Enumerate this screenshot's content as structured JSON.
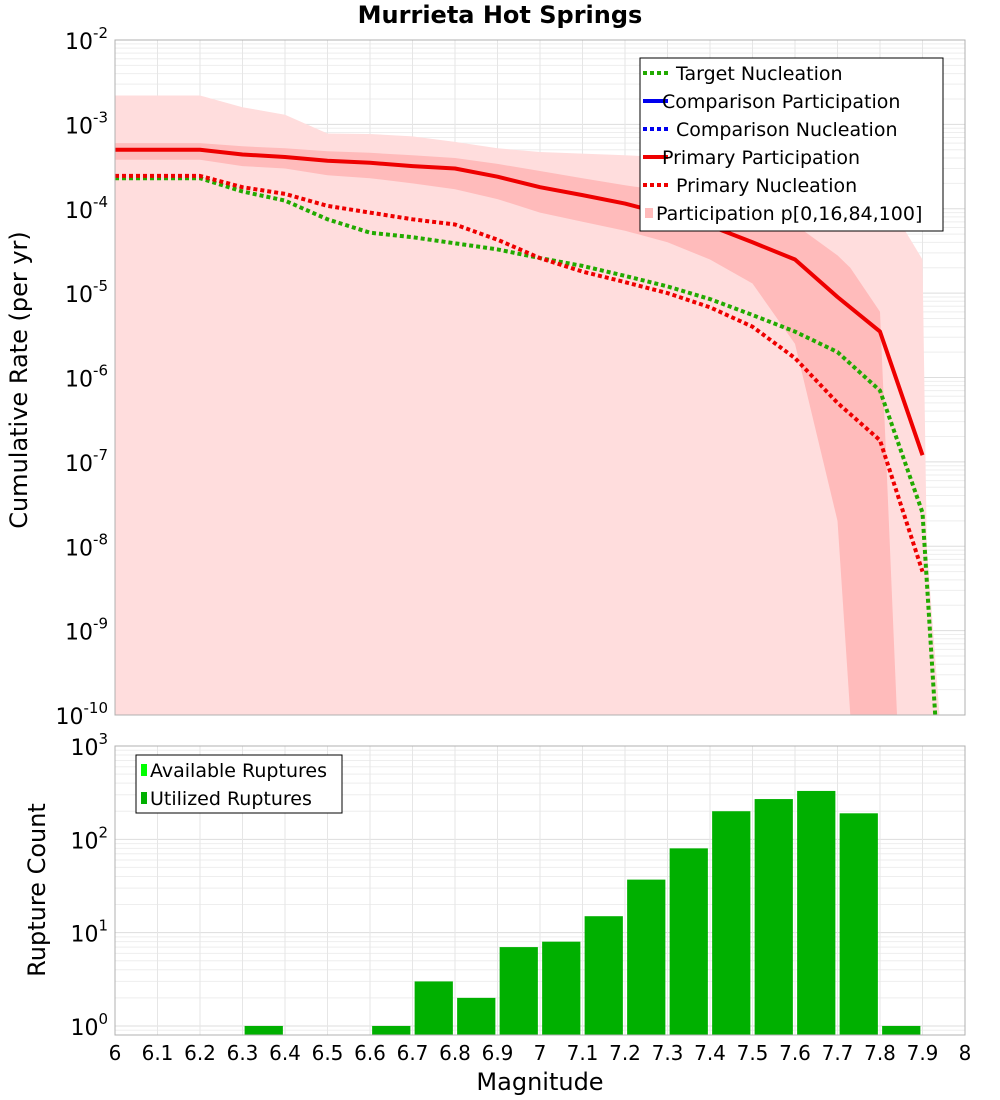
{
  "chart_data": [
    {
      "type": "line",
      "title": "Murrieta Hot Springs",
      "ylabel": "Cumulative Rate (per yr)",
      "yscale": "log",
      "ylim": [
        1e-10,
        0.01
      ],
      "xlim": [
        6,
        8
      ],
      "grid": true,
      "legend_position": "top-right",
      "ytick_labels": [
        {
          "base": "10",
          "exp": "-10"
        },
        {
          "base": "10",
          "exp": "-9"
        },
        {
          "base": "10",
          "exp": "-8"
        },
        {
          "base": "10",
          "exp": "-7"
        },
        {
          "base": "10",
          "exp": "-6"
        },
        {
          "base": "10",
          "exp": "-5"
        },
        {
          "base": "10",
          "exp": "-4"
        },
        {
          "base": "10",
          "exp": "-3"
        },
        {
          "base": "10",
          "exp": "-2"
        }
      ],
      "legend": [
        "Target Nucleation",
        "Comparison Participation",
        "Comparison Nucleation",
        "Primary Participation",
        "Primary Nucleation",
        "Participation p[0,16,84,100]"
      ],
      "series": [
        {
          "name": "Target Nucleation",
          "style": "dotted",
          "color": "#22aa00",
          "x": [
            6.0,
            6.2,
            6.3,
            6.4,
            6.5,
            6.6,
            6.7,
            6.8,
            6.9,
            7.0,
            7.1,
            7.2,
            7.3,
            7.4,
            7.5,
            7.6,
            7.7,
            7.8,
            7.9,
            7.93
          ],
          "y": [
            0.00023,
            0.00023,
            0.00016,
            0.000125,
            7.5e-05,
            5.2e-05,
            4.6e-05,
            3.9e-05,
            3.3e-05,
            2.6e-05,
            2.1e-05,
            1.6e-05,
            1.2e-05,
            8.5e-06,
            5.5e-06,
            3.5e-06,
            2e-06,
            7e-07,
            2.5e-08,
            1e-10
          ]
        },
        {
          "name": "Primary Participation",
          "style": "solid",
          "color": "#ee0000",
          "x": [
            6.0,
            6.2,
            6.3,
            6.4,
            6.5,
            6.6,
            6.7,
            6.8,
            6.9,
            7.0,
            7.1,
            7.2,
            7.3,
            7.4,
            7.5,
            7.6,
            7.7,
            7.8,
            7.9
          ],
          "y": [
            0.0005,
            0.0005,
            0.00044,
            0.00041,
            0.00037,
            0.00035,
            0.00032,
            0.0003,
            0.00024,
            0.00018,
            0.000145,
            0.000115,
            8.5e-05,
            6.3e-05,
            4e-05,
            2.5e-05,
            9e-06,
            3.5e-06,
            1.2e-07
          ]
        },
        {
          "name": "Primary Nucleation",
          "style": "dotted",
          "color": "#ee0000",
          "x": [
            6.0,
            6.2,
            6.3,
            6.4,
            6.5,
            6.6,
            6.7,
            6.8,
            6.9,
            7.0,
            7.1,
            7.2,
            7.3,
            7.4,
            7.5,
            7.6,
            7.7,
            7.8,
            7.9
          ],
          "y": [
            0.000245,
            0.000245,
            0.00018,
            0.00015,
            0.000108,
            9e-05,
            7.5e-05,
            6.5e-05,
            4.3e-05,
            2.6e-05,
            1.8e-05,
            1.35e-05,
            1e-05,
            6.8e-06,
            4e-06,
            1.7e-06,
            5e-07,
            1.8e-07,
            5e-09
          ]
        }
      ],
      "bands": [
        {
          "name": "Participation p[0,16,84,100] outer",
          "color": "#ffdddd",
          "x": [
            6.0,
            6.2,
            6.3,
            6.4,
            6.5,
            6.6,
            6.7,
            6.8,
            6.9,
            7.0,
            7.1,
            7.2,
            7.3,
            7.4,
            7.5,
            7.6,
            7.7,
            7.8,
            7.9,
            7.91,
            7.94
          ],
          "lower": [
            1e-10,
            1e-10,
            1e-10,
            1e-10,
            1e-10,
            1e-10,
            1e-10,
            1e-10,
            1e-10,
            1e-10,
            1e-10,
            1e-10,
            1e-10,
            1e-10,
            1e-10,
            1e-10,
            1e-10,
            1e-10,
            1e-10,
            1e-10,
            1e-10
          ],
          "upper": [
            0.0022,
            0.0022,
            0.0016,
            0.0013,
            0.00078,
            0.00077,
            0.00072,
            0.00062,
            0.00052,
            0.00047,
            0.00045,
            0.00043,
            0.00041,
            0.00038,
            0.0003,
            0.00026,
            0.00022,
            0.00017,
            2.5e-05,
            1e-08,
            1e-10
          ]
        },
        {
          "name": "Participation p[16,84] inner",
          "color": "#ffbbbb",
          "x": [
            6.0,
            6.2,
            6.3,
            6.4,
            6.5,
            6.6,
            6.7,
            6.8,
            6.9,
            7.0,
            7.1,
            7.2,
            7.3,
            7.4,
            7.5,
            7.6,
            7.7,
            7.73,
            7.8,
            7.84
          ],
          "lower": [
            0.00038,
            0.00038,
            0.00032,
            0.0003,
            0.00025,
            0.00023,
            0.0002,
            0.00017,
            0.00013,
            9e-05,
            7e-05,
            5.5e-05,
            4e-05,
            2.5e-05,
            1.3e-05,
            2.5e-06,
            2e-08,
            1e-10,
            1e-10,
            1e-10
          ],
          "upper": [
            0.0006,
            0.0006,
            0.00055,
            0.00052,
            0.00048,
            0.00046,
            0.00043,
            0.0004,
            0.00034,
            0.00028,
            0.00023,
            0.00019,
            0.00016,
            0.00013,
            9.5e-05,
            6.5e-05,
            2.8e-05,
            2e-05,
            6e-06,
            1e-10
          ]
        }
      ]
    },
    {
      "type": "bar",
      "ylabel": "Rupture Count",
      "xlabel": "Magnitude",
      "yscale": "log",
      "ylim": [
        0.8,
        1000
      ],
      "xlim": [
        6,
        8
      ],
      "grid": true,
      "legend_position": "top-left",
      "xtick_labels": [
        "6",
        "6.1",
        "6.2",
        "6.3",
        "6.4",
        "6.5",
        "6.6",
        "6.7",
        "6.8",
        "6.9",
        "7",
        "7.1",
        "7.2",
        "7.3",
        "7.4",
        "7.5",
        "7.6",
        "7.7",
        "7.8",
        "7.9",
        "8"
      ],
      "ytick_labels": [
        {
          "base": "10",
          "exp": "0"
        },
        {
          "base": "10",
          "exp": "1"
        },
        {
          "base": "10",
          "exp": "2"
        },
        {
          "base": "10",
          "exp": "3"
        }
      ],
      "legend": [
        {
          "label": "Available Ruptures",
          "color": "#00ff00"
        },
        {
          "label": "Utilized Ruptures",
          "color": "#00b000"
        }
      ],
      "bar_color": "#00b000",
      "bars": [
        {
          "x": 6.35,
          "value": 1
        },
        {
          "x": 6.65,
          "value": 1
        },
        {
          "x": 6.75,
          "value": 3
        },
        {
          "x": 6.85,
          "value": 2
        },
        {
          "x": 6.95,
          "value": 7
        },
        {
          "x": 7.05,
          "value": 8
        },
        {
          "x": 7.15,
          "value": 15
        },
        {
          "x": 7.25,
          "value": 37
        },
        {
          "x": 7.35,
          "value": 80
        },
        {
          "x": 7.45,
          "value": 200
        },
        {
          "x": 7.55,
          "value": 270
        },
        {
          "x": 7.65,
          "value": 330
        },
        {
          "x": 7.75,
          "value": 190
        },
        {
          "x": 7.85,
          "value": 1
        }
      ]
    }
  ]
}
